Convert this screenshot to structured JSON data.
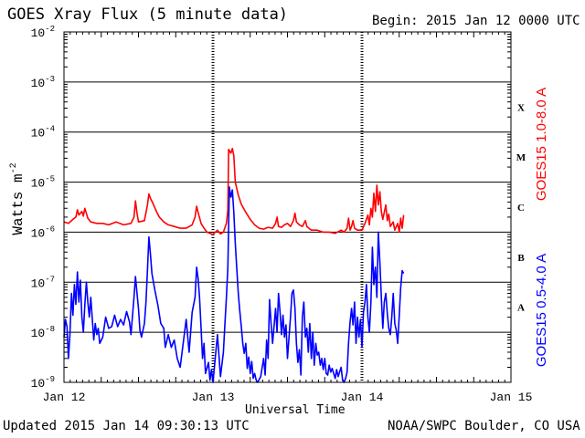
{
  "header": {
    "title": "GOES Xray Flux (5 minute data)",
    "begin": "Begin:  2015 Jan 12 0000 UTC"
  },
  "footer": {
    "updated": "Updated 2015 Jan 14 09:30:13 UTC",
    "credit": "NOAA/SWPC Boulder, CO USA"
  },
  "chart_data": {
    "type": "line",
    "xlabel": "Universal Time",
    "ylabel": "Watts m",
    "ylabel_sup": "-2",
    "x_ticks": [
      "Jan 12",
      "Jan 13",
      "Jan 14",
      "Jan 15"
    ],
    "x_range_days": [
      0,
      3
    ],
    "y_scale": "log",
    "y_ticks": [
      "10^-9",
      "10^-8",
      "10^-7",
      "10^-6",
      "10^-5",
      "10^-4",
      "10^-3",
      "10^-2"
    ],
    "ylim": [
      1e-09,
      0.01
    ],
    "flare_classes": [
      "A",
      "B",
      "C",
      "M",
      "X"
    ],
    "grid": true,
    "series": [
      {
        "name": "GOES15 1.0-8.0 A",
        "color": "#ff0000",
        "points": [
          [
            0.0,
            1.6e-06
          ],
          [
            0.03,
            1.5e-06
          ],
          [
            0.06,
            1.8e-06
          ],
          [
            0.08,
            2e-06
          ],
          [
            0.09,
            2.8e-06
          ],
          [
            0.1,
            2.2e-06
          ],
          [
            0.12,
            2.6e-06
          ],
          [
            0.13,
            2.1e-06
          ],
          [
            0.14,
            3e-06
          ],
          [
            0.16,
            1.9e-06
          ],
          [
            0.18,
            1.6e-06
          ],
          [
            0.22,
            1.5e-06
          ],
          [
            0.26,
            1.5e-06
          ],
          [
            0.3,
            1.4e-06
          ],
          [
            0.35,
            1.6e-06
          ],
          [
            0.4,
            1.4e-06
          ],
          [
            0.45,
            1.5e-06
          ],
          [
            0.47,
            2e-06
          ],
          [
            0.48,
            4.2e-06
          ],
          [
            0.49,
            2.4e-06
          ],
          [
            0.5,
            1.6e-06
          ],
          [
            0.54,
            1.7e-06
          ],
          [
            0.56,
            3.5e-06
          ],
          [
            0.57,
            5.8e-06
          ],
          [
            0.58,
            4.8e-06
          ],
          [
            0.6,
            3.6e-06
          ],
          [
            0.62,
            2.6e-06
          ],
          [
            0.64,
            2e-06
          ],
          [
            0.67,
            1.6e-06
          ],
          [
            0.7,
            1.4e-06
          ],
          [
            0.74,
            1.3e-06
          ],
          [
            0.78,
            1.2e-06
          ],
          [
            0.82,
            1.2e-06
          ],
          [
            0.86,
            1.4e-06
          ],
          [
            0.88,
            2e-06
          ],
          [
            0.89,
            3.3e-06
          ],
          [
            0.9,
            2.5e-06
          ],
          [
            0.92,
            1.5e-06
          ],
          [
            0.94,
            1.2e-06
          ],
          [
            0.96,
            1e-06
          ],
          [
            0.98,
            9.5e-07
          ],
          [
            1.0,
            9e-07
          ],
          [
            1.03,
            1.1e-06
          ],
          [
            1.05,
            9.2e-07
          ],
          [
            1.07,
            1e-06
          ],
          [
            1.09,
            1.5e-06
          ],
          [
            1.1,
            2.8e-06
          ],
          [
            1.105,
            4.5e-05
          ],
          [
            1.12,
            3.8e-05
          ],
          [
            1.13,
            4.7e-05
          ],
          [
            1.14,
            3.4e-05
          ],
          [
            1.15,
            1e-05
          ],
          [
            1.17,
            5.5e-06
          ],
          [
            1.19,
            3.6e-06
          ],
          [
            1.22,
            2.5e-06
          ],
          [
            1.25,
            1.8e-06
          ],
          [
            1.28,
            1.4e-06
          ],
          [
            1.31,
            1.2e-06
          ],
          [
            1.34,
            1.15e-06
          ],
          [
            1.37,
            1.25e-06
          ],
          [
            1.4,
            1.2e-06
          ],
          [
            1.42,
            1.5e-06
          ],
          [
            1.43,
            2e-06
          ],
          [
            1.44,
            1.3e-06
          ],
          [
            1.46,
            1.25e-06
          ],
          [
            1.48,
            1.4e-06
          ],
          [
            1.5,
            1.5e-06
          ],
          [
            1.52,
            1.3e-06
          ],
          [
            1.54,
            1.7e-06
          ],
          [
            1.55,
            2.4e-06
          ],
          [
            1.56,
            1.6e-06
          ],
          [
            1.58,
            1.4e-06
          ],
          [
            1.6,
            1.3e-06
          ],
          [
            1.62,
            1.7e-06
          ],
          [
            1.63,
            1.3e-06
          ],
          [
            1.66,
            1.1e-06
          ],
          [
            1.7,
            1.1e-06
          ],
          [
            1.74,
            1e-06
          ],
          [
            1.78,
            1e-06
          ],
          [
            1.82,
            9.5e-07
          ],
          [
            1.86,
            1.1e-06
          ],
          [
            1.88,
            1e-06
          ],
          [
            1.9,
            1.2e-06
          ],
          [
            1.91,
            1.9e-06
          ],
          [
            1.92,
            1.1e-06
          ],
          [
            1.93,
            1.3e-06
          ],
          [
            1.94,
            1.7e-06
          ],
          [
            1.95,
            1.2e-06
          ],
          [
            1.97,
            1.1e-06
          ],
          [
            2.0,
            1.1e-06
          ],
          [
            2.02,
            1.5e-06
          ],
          [
            2.04,
            2.2e-06
          ],
          [
            2.05,
            1.4e-06
          ],
          [
            2.06,
            3e-06
          ],
          [
            2.07,
            2e-06
          ],
          [
            2.08,
            6e-06
          ],
          [
            2.09,
            2.6e-06
          ],
          [
            2.1,
            8.7e-06
          ],
          [
            2.11,
            3.5e-06
          ],
          [
            2.12,
            6.4e-06
          ],
          [
            2.13,
            2.6e-06
          ],
          [
            2.14,
            1.8e-06
          ],
          [
            2.16,
            3.5e-06
          ],
          [
            2.17,
            1.7e-06
          ],
          [
            2.18,
            2.3e-06
          ],
          [
            2.19,
            1.3e-06
          ],
          [
            2.21,
            1.6e-06
          ],
          [
            2.22,
            1.1e-06
          ],
          [
            2.24,
            1.5e-06
          ],
          [
            2.25,
            1e-06
          ],
          [
            2.26,
            1.9e-06
          ],
          [
            2.27,
            1.2e-06
          ],
          [
            2.28,
            2.2e-06
          ]
        ]
      },
      {
        "name": "GOES15 0.5-4.0 A",
        "color": "#0000ff",
        "points": [
          [
            0.0,
            8e-09
          ],
          [
            0.01,
            1.8e-08
          ],
          [
            0.02,
            1.3e-08
          ],
          [
            0.03,
            3e-09
          ],
          [
            0.04,
            9e-09
          ],
          [
            0.05,
            6e-08
          ],
          [
            0.06,
            2.2e-08
          ],
          [
            0.07,
            9e-08
          ],
          [
            0.08,
            3.6e-08
          ],
          [
            0.09,
            1.6e-07
          ],
          [
            0.1,
            4e-08
          ],
          [
            0.11,
            1.1e-07
          ],
          [
            0.12,
            2e-08
          ],
          [
            0.13,
            1e-08
          ],
          [
            0.14,
            3.5e-08
          ],
          [
            0.15,
            1e-07
          ],
          [
            0.16,
            4e-08
          ],
          [
            0.17,
            2e-08
          ],
          [
            0.18,
            5e-08
          ],
          [
            0.19,
            1.8e-08
          ],
          [
            0.2,
            7e-09
          ],
          [
            0.21,
            1.5e-08
          ],
          [
            0.22,
            9e-09
          ],
          [
            0.23,
            1.2e-08
          ],
          [
            0.24,
            6e-09
          ],
          [
            0.26,
            8e-09
          ],
          [
            0.28,
            2e-08
          ],
          [
            0.3,
            1.2e-08
          ],
          [
            0.32,
            1.3e-08
          ],
          [
            0.34,
            2.2e-08
          ],
          [
            0.36,
            1.3e-08
          ],
          [
            0.38,
            1.8e-08
          ],
          [
            0.4,
            1.4e-08
          ],
          [
            0.42,
            2.6e-08
          ],
          [
            0.44,
            1.6e-08
          ],
          [
            0.45,
            9e-09
          ],
          [
            0.47,
            5e-08
          ],
          [
            0.48,
            1.3e-07
          ],
          [
            0.49,
            6e-08
          ],
          [
            0.5,
            3e-08
          ],
          [
            0.51,
            1.1e-08
          ],
          [
            0.52,
            8e-09
          ],
          [
            0.54,
            1.5e-08
          ],
          [
            0.55,
            4e-08
          ],
          [
            0.56,
            1.7e-07
          ],
          [
            0.57,
            8e-07
          ],
          [
            0.58,
            3.8e-07
          ],
          [
            0.59,
            1.5e-07
          ],
          [
            0.61,
            7e-08
          ],
          [
            0.63,
            3.5e-08
          ],
          [
            0.65,
            1.5e-08
          ],
          [
            0.67,
            1.2e-08
          ],
          [
            0.68,
            5e-09
          ],
          [
            0.7,
            9e-09
          ],
          [
            0.72,
            5e-09
          ],
          [
            0.74,
            7e-09
          ],
          [
            0.76,
            3e-09
          ],
          [
            0.78,
            2e-09
          ],
          [
            0.8,
            6e-09
          ],
          [
            0.82,
            1.8e-08
          ],
          [
            0.84,
            4e-09
          ],
          [
            0.86,
            2.5e-08
          ],
          [
            0.88,
            5e-08
          ],
          [
            0.89,
            2e-07
          ],
          [
            0.9,
            1.2e-07
          ],
          [
            0.91,
            5e-08
          ],
          [
            0.92,
            1.2e-08
          ],
          [
            0.93,
            3e-09
          ],
          [
            0.94,
            6e-09
          ],
          [
            0.95,
            1.5e-09
          ],
          [
            0.97,
            2.5e-09
          ],
          [
            0.98,
            1.1e-09
          ],
          [
            0.99,
            1.8e-09
          ],
          [
            1.0,
            1e-09
          ],
          [
            1.03,
            9e-09
          ],
          [
            1.05,
            1.3e-09
          ],
          [
            1.07,
            4e-09
          ],
          [
            1.08,
            1.4e-08
          ],
          [
            1.09,
            5e-08
          ],
          [
            1.1,
            2e-07
          ],
          [
            1.11,
            8e-06
          ],
          [
            1.12,
            5e-06
          ],
          [
            1.13,
            7e-06
          ],
          [
            1.14,
            2.5e-06
          ],
          [
            1.15,
            6e-07
          ],
          [
            1.16,
            1.8e-07
          ],
          [
            1.17,
            6e-08
          ],
          [
            1.18,
            2.7e-08
          ],
          [
            1.19,
            1.3e-08
          ],
          [
            1.2,
            6e-09
          ],
          [
            1.21,
            3.8e-09
          ],
          [
            1.22,
            6e-09
          ],
          [
            1.23,
            1.9e-09
          ],
          [
            1.24,
            3.2e-09
          ],
          [
            1.25,
            1.5e-09
          ],
          [
            1.26,
            2.6e-09
          ],
          [
            1.27,
            1.2e-09
          ],
          [
            1.28,
            1.5e-09
          ],
          [
            1.29,
            1.1e-09
          ],
          [
            1.3,
            1e-09
          ],
          [
            1.32,
            1.3e-09
          ],
          [
            1.34,
            3e-09
          ],
          [
            1.35,
            1.4e-09
          ],
          [
            1.36,
            7e-09
          ],
          [
            1.37,
            3e-09
          ],
          [
            1.38,
            4.5e-08
          ],
          [
            1.39,
            1.5e-08
          ],
          [
            1.4,
            6e-09
          ],
          [
            1.42,
            3e-08
          ],
          [
            1.43,
            1e-08
          ],
          [
            1.44,
            6e-08
          ],
          [
            1.45,
            2.5e-08
          ],
          [
            1.46,
            9e-09
          ],
          [
            1.47,
            2.2e-08
          ],
          [
            1.48,
            8e-09
          ],
          [
            1.49,
            1.4e-08
          ],
          [
            1.5,
            3e-09
          ],
          [
            1.52,
            2e-08
          ],
          [
            1.53,
            6e-08
          ],
          [
            1.54,
            7e-08
          ],
          [
            1.55,
            3e-08
          ],
          [
            1.56,
            6e-09
          ],
          [
            1.57,
            2.5e-09
          ],
          [
            1.58,
            4.5e-09
          ],
          [
            1.59,
            1.4e-09
          ],
          [
            1.6,
            2e-08
          ],
          [
            1.61,
            4e-08
          ],
          [
            1.62,
            8e-09
          ],
          [
            1.63,
            1.2e-08
          ],
          [
            1.64,
            4e-09
          ],
          [
            1.65,
            1.5e-08
          ],
          [
            1.66,
            3e-09
          ],
          [
            1.67,
            1e-08
          ],
          [
            1.68,
            2.2e-09
          ],
          [
            1.69,
            6e-09
          ],
          [
            1.7,
            3.5e-09
          ],
          [
            1.71,
            4e-09
          ],
          [
            1.72,
            2.2e-09
          ],
          [
            1.73,
            3e-09
          ],
          [
            1.74,
            1.8e-09
          ],
          [
            1.75,
            3e-09
          ],
          [
            1.76,
            1.5e-09
          ],
          [
            1.77,
            1.4e-09
          ],
          [
            1.78,
            2.2e-09
          ],
          [
            1.79,
            1.6e-09
          ],
          [
            1.8,
            1.9e-09
          ],
          [
            1.82,
            1.2e-09
          ],
          [
            1.83,
            1.8e-09
          ],
          [
            1.84,
            1.3e-09
          ],
          [
            1.86,
            2e-09
          ],
          [
            1.87,
            1.1e-09
          ],
          [
            1.88,
            1e-09
          ],
          [
            1.89,
            1.2e-09
          ],
          [
            1.9,
            1.6e-09
          ],
          [
            1.91,
            6e-09
          ],
          [
            1.92,
            1.6e-08
          ],
          [
            1.93,
            3e-08
          ],
          [
            1.94,
            1.4e-08
          ],
          [
            1.95,
            4e-08
          ],
          [
            1.96,
            6e-09
          ],
          [
            1.97,
            2e-08
          ],
          [
            1.98,
            8e-09
          ],
          [
            1.99,
            1.8e-08
          ],
          [
            2.0,
            5e-09
          ],
          [
            2.01,
            2.5e-08
          ],
          [
            2.02,
            4e-08
          ],
          [
            2.03,
            9e-08
          ],
          [
            2.04,
            2e-08
          ],
          [
            2.05,
            1e-08
          ],
          [
            2.06,
            4e-08
          ],
          [
            2.07,
            5e-07
          ],
          [
            2.08,
            9e-08
          ],
          [
            2.09,
            2e-07
          ],
          [
            2.1,
            5e-08
          ],
          [
            2.11,
            1e-06
          ],
          [
            2.12,
            2.5e-07
          ],
          [
            2.13,
            5e-08
          ],
          [
            2.14,
            1.2e-08
          ],
          [
            2.15,
            4e-08
          ],
          [
            2.16,
            6e-08
          ],
          [
            2.17,
            2.4e-08
          ],
          [
            2.18,
            1.2e-08
          ],
          [
            2.19,
            9e-09
          ],
          [
            2.2,
            2e-08
          ],
          [
            2.21,
            6e-08
          ],
          [
            2.22,
            1.5e-08
          ],
          [
            2.23,
            1.1e-08
          ],
          [
            2.24,
            6e-09
          ],
          [
            2.25,
            2.2e-08
          ],
          [
            2.26,
            8e-08
          ],
          [
            2.27,
            1.7e-07
          ],
          [
            2.28,
            1.5e-07
          ]
        ]
      }
    ]
  }
}
